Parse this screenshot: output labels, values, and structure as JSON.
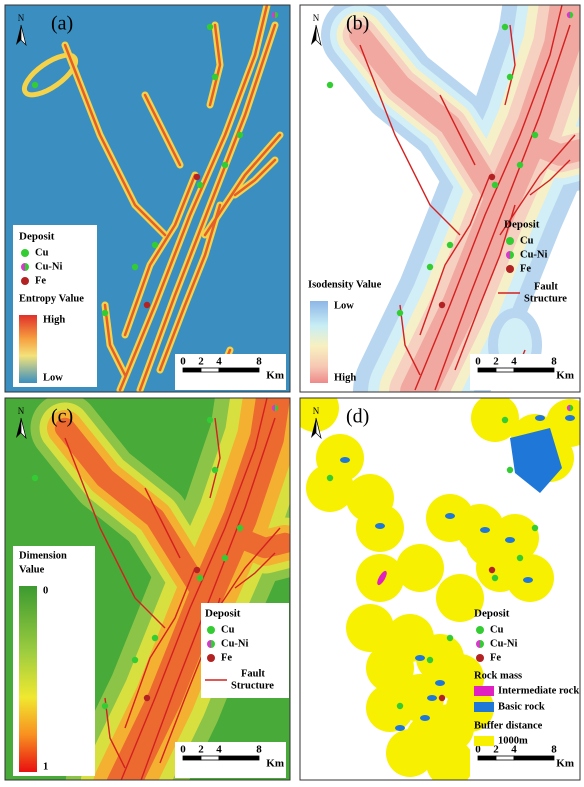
{
  "north": "N",
  "panels": [
    {
      "label": "(a)",
      "legend": {
        "title": "Deposit",
        "items": [
          "Cu",
          "Cu-Ni",
          "Fe"
        ]
      },
      "ramp": {
        "title": "Entropy Value",
        "top": "High",
        "bottom": "Low"
      },
      "scale": {
        "ticks": [
          "0",
          "2",
          "4",
          "8"
        ],
        "unit": "Km"
      }
    },
    {
      "label": "(b)",
      "legend": {
        "title": "Deposit",
        "items": [
          "Cu",
          "Cu-Ni",
          "Fe"
        ]
      },
      "fault": [
        "Fault",
        "Structure"
      ],
      "ramp": {
        "title": "Isodensity Value",
        "top": "Low",
        "bottom": "High"
      },
      "scale": {
        "ticks": [
          "0",
          "2",
          "4",
          "8"
        ],
        "unit": "Km"
      }
    },
    {
      "label": "(c)",
      "ramp": {
        "title": [
          "Dimension",
          "Value"
        ],
        "top": "0",
        "bottom": "1"
      },
      "legend": {
        "title": "Deposit",
        "items": [
          "Cu",
          "Cu-Ni",
          "Fe"
        ]
      },
      "fault": [
        "Fault",
        "Structure"
      ],
      "scale": {
        "ticks": [
          "0",
          "2",
          "4",
          "8"
        ],
        "unit": "Km"
      }
    },
    {
      "label": "(d)",
      "legend": {
        "title": "Deposit",
        "items": [
          "Cu",
          "Cu-Ni",
          "Fe"
        ]
      },
      "rock": {
        "title": "Rock mass",
        "items": [
          "Intermediate rock",
          "Basic rock"
        ]
      },
      "buffer": {
        "title": "Buffer distance",
        "items": [
          "1000m"
        ]
      },
      "scale": {
        "ticks": [
          "0",
          "2",
          "4",
          "8"
        ],
        "unit": "Km"
      }
    }
  ]
}
